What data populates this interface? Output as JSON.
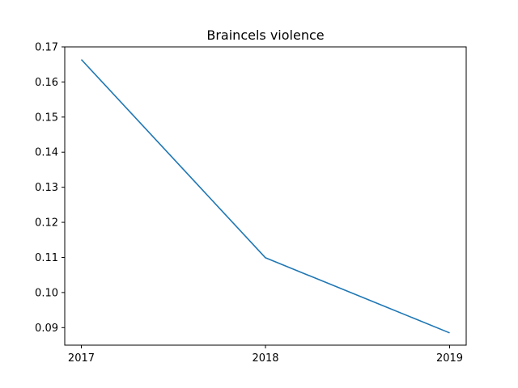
{
  "chart_data": {
    "type": "line",
    "title": "Braincels violence",
    "xlabel": "",
    "ylabel": "",
    "x": [
      2017,
      2018,
      2019
    ],
    "x_tick_labels": [
      "2017",
      "2018",
      "2019"
    ],
    "series": [
      {
        "values": [
          0.1664,
          0.1099,
          0.0885
        ],
        "color": "#1f77b4"
      }
    ],
    "ylim": [
      0.085,
      0.17
    ],
    "y_ticks": [
      0.09,
      0.1,
      0.11,
      0.12,
      0.13,
      0.14,
      0.15,
      0.16,
      0.17
    ],
    "y_tick_labels": [
      "0.09",
      "0.10",
      "0.11",
      "0.12",
      "0.13",
      "0.14",
      "0.15",
      "0.16",
      "0.17"
    ],
    "grid": false,
    "legend": "none"
  }
}
